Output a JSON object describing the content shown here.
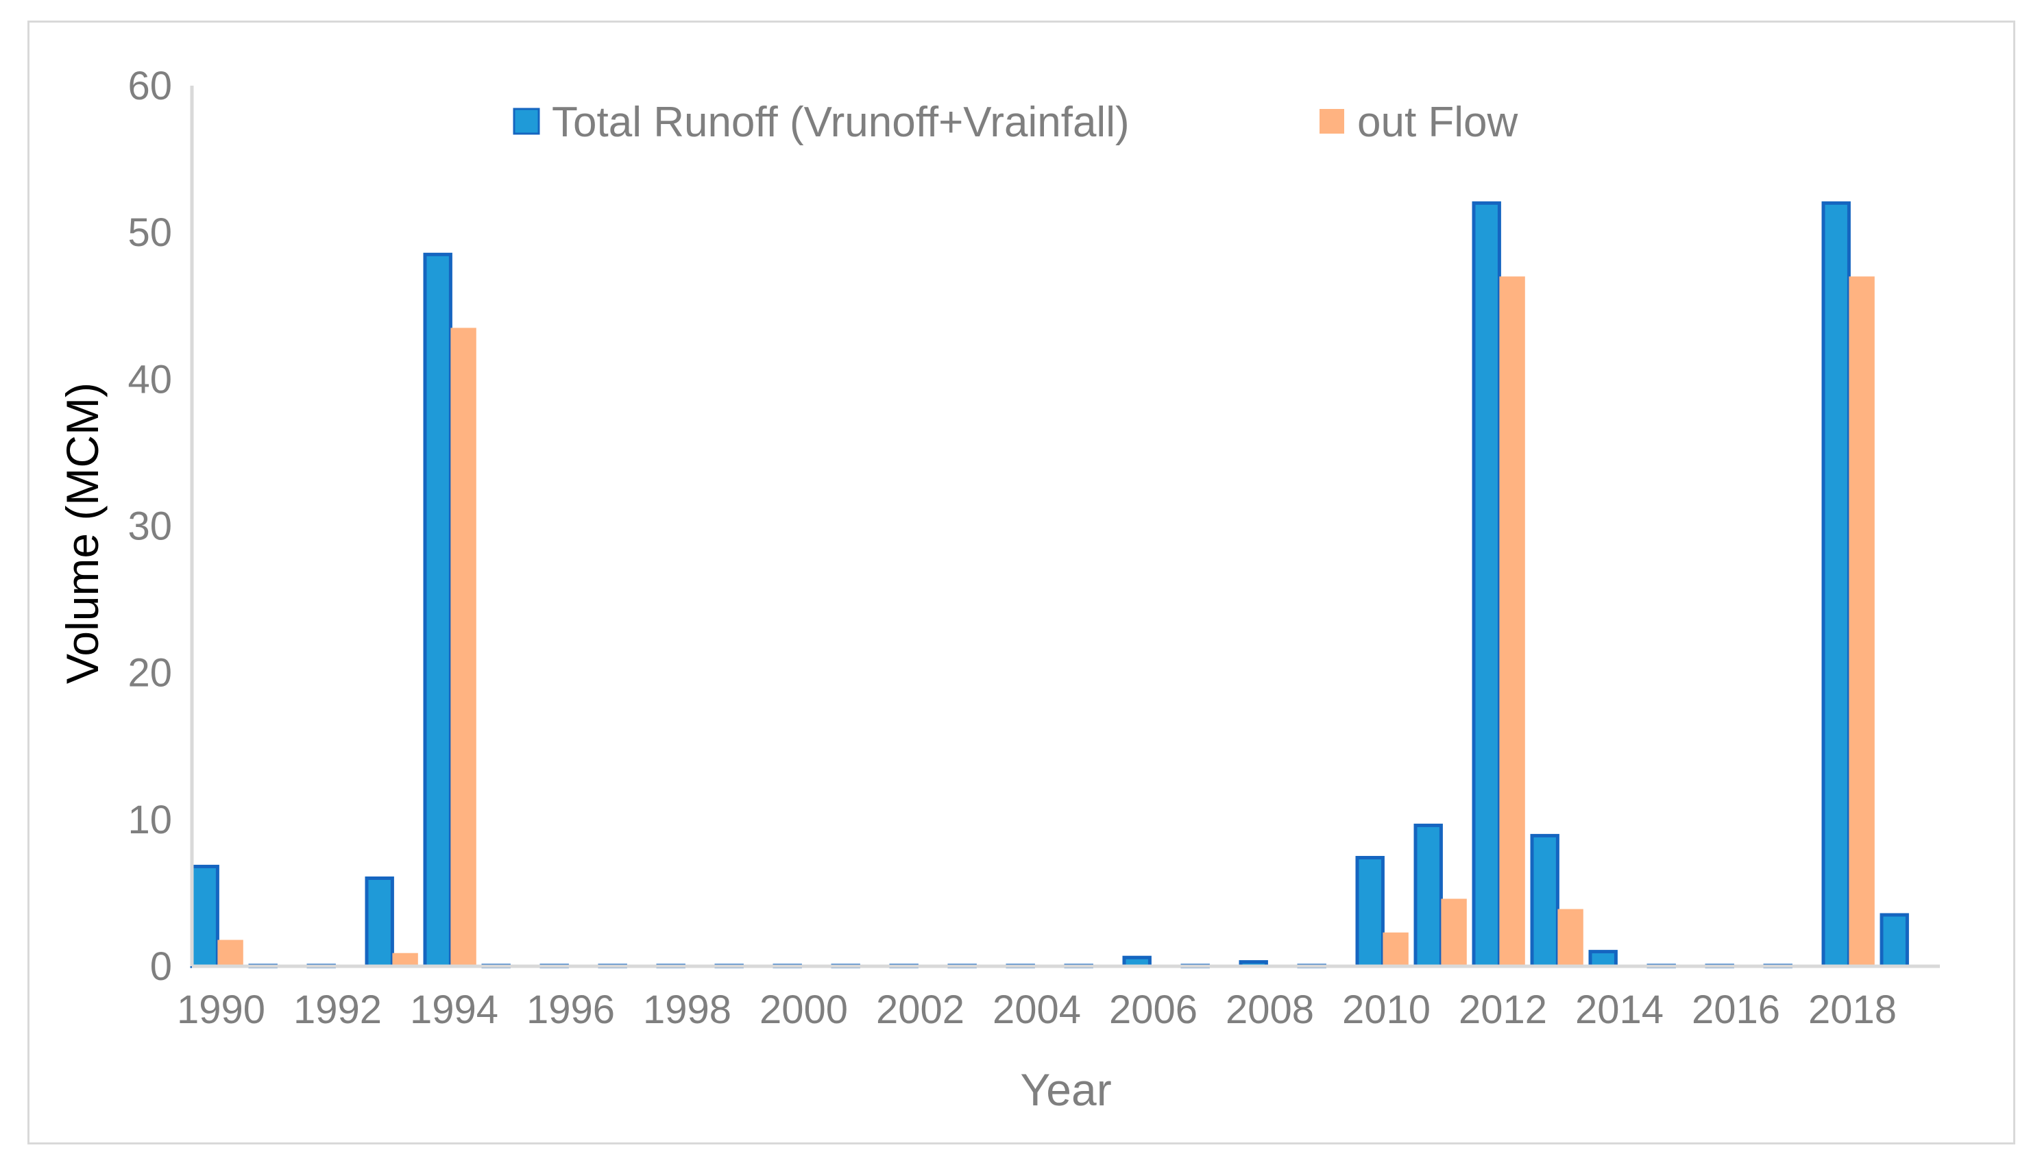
{
  "chart_data": {
    "type": "bar",
    "categories": [
      1990,
      1991,
      1992,
      1993,
      1994,
      1995,
      1996,
      1997,
      1998,
      1999,
      2000,
      2001,
      2002,
      2003,
      2004,
      2005,
      2006,
      2007,
      2008,
      2009,
      2010,
      2011,
      2012,
      2013,
      2014,
      2015,
      2016,
      2017,
      2018,
      2019
    ],
    "x_tick_labels": [
      "1990",
      "1992",
      "1994",
      "1996",
      "1998",
      "2000",
      "2002",
      "2004",
      "2006",
      "2008",
      "2010",
      "2012",
      "2014",
      "2016",
      "2018"
    ],
    "series": [
      {
        "name": "Total Runoff (Vrunoff+Vrainfall)",
        "color": "#1f9ad8",
        "edge_color": "#1565c0",
        "values": [
          6.8,
          0.05,
          0.05,
          6.0,
          48.5,
          0.05,
          0.05,
          0.05,
          0.05,
          0.05,
          0.05,
          0.05,
          0.05,
          0.05,
          0.05,
          0.05,
          0.6,
          0.05,
          0.3,
          0.05,
          7.4,
          9.6,
          52.0,
          8.9,
          1.0,
          0.05,
          0.05,
          0.05,
          52.0,
          3.5
        ]
      },
      {
        "name": "out Flow",
        "color": "#ffb381",
        "edge_color": "#ffb381",
        "values": [
          1.8,
          0,
          0,
          0.9,
          43.5,
          0,
          0,
          0,
          0,
          0,
          0,
          0,
          0,
          0,
          0,
          0,
          0,
          0,
          0,
          0,
          2.3,
          4.6,
          47.0,
          3.9,
          0,
          0,
          0,
          0,
          47.0,
          0
        ]
      }
    ],
    "xlabel": "Year",
    "ylabel": "Volume (MCM)",
    "ylim": [
      0,
      60
    ],
    "y_ticks": [
      0,
      10,
      20,
      30,
      40,
      50,
      60
    ],
    "grid": false,
    "legend_position": "top"
  }
}
